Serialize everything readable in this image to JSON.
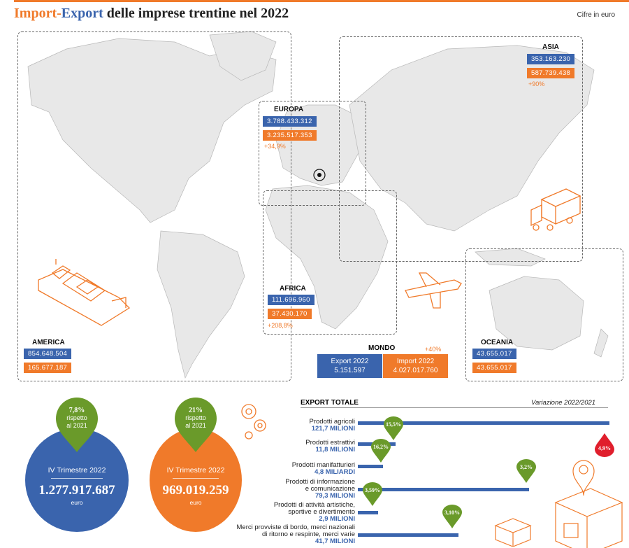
{
  "header": {
    "title_import": "Import",
    "title_dash": "-",
    "title_export": "Export",
    "title_rest": " delle imprese trentine nel 2022",
    "unit_note": "Cifre in euro"
  },
  "colors": {
    "export": "#3a64ad",
    "import": "#f07a2a",
    "positive": "#6a9a2a",
    "negative": "#e01e2c"
  },
  "regions": {
    "asia": {
      "name": "ASIA",
      "export": "353.163.230",
      "import": "587.739.438",
      "change": "+90%"
    },
    "europa": {
      "name": "EUROPA",
      "export": "3.788.433.312",
      "import": "3.235.517.353",
      "change": "+34,9%"
    },
    "africa": {
      "name": "AFRICA",
      "export": "111.696.960",
      "import": "37.430.170",
      "change": "+208,8%"
    },
    "america": {
      "name": "AMERICA",
      "export": "854.648.504",
      "import": "165.677.187"
    },
    "oceania": {
      "name": "OCEANIA",
      "export": "43.655.017",
      "import": "43.655.017"
    }
  },
  "mondo": {
    "name": "MONDO",
    "change": "+40%",
    "export_label": "Export 2022",
    "export_value": "5.151.597",
    "import_label": "Import 2022",
    "import_value": "4.027.017.760"
  },
  "quarter": {
    "export": {
      "label": "IV Trimestre 2022",
      "value": "1.277.917.687",
      "unit": "euro",
      "change": "7,8%",
      "change_note_1": "rispetto",
      "change_note_2": "al 2021"
    },
    "import": {
      "label": "IV Trimestre 2022",
      "value": "969.019.259",
      "unit": "euro",
      "change": "21%",
      "change_note_1": "rispetto",
      "change_note_2": "al 2021"
    }
  },
  "chart_data": {
    "type": "bar",
    "title": "EXPORT TOTALE",
    "subtitle": "Variazione 2022/2021",
    "categories": [
      "Prodotti agricoli",
      "Prodotti estrattivi",
      "Prodotti manifatturieri",
      "Prodotti di informazione e comunicazione",
      "Prodotti di attività artistiche, sportive e divertimento",
      "Merci provviste di bordo, merci nazionali di ritorno e respinte, merci varie"
    ],
    "value_labels": [
      "121,7 MILIONI",
      "11,8 MILIONI",
      "4,8 MILIARDI",
      "79,3 MILIONI",
      "2,9 MILIONI",
      "41,7 MILIONI"
    ],
    "change_labels": [
      "15,5%",
      "16,2%",
      "3,2%",
      "3,59%",
      "3,10%",
      "4,9%"
    ],
    "change_sign": [
      "positive",
      "positive",
      "positive",
      "positive",
      "positive",
      "negative"
    ],
    "bar_length": [
      1.0,
      0.15,
      0.1,
      0.68,
      0.08,
      0.4
    ]
  }
}
